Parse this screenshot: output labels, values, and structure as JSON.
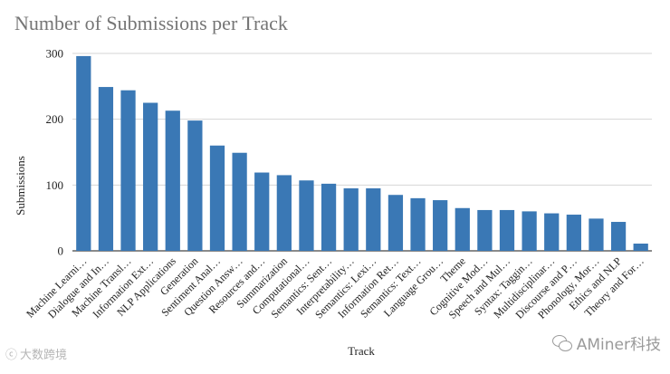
{
  "chart_data": {
    "type": "bar",
    "title": "Number of Submissions per Track",
    "xlabel": "Track",
    "ylabel": "Submissions",
    "ylim": [
      0,
      300
    ],
    "yticks": [
      "0",
      "100",
      "200",
      "300"
    ],
    "grid": true,
    "legend": "none",
    "bar_color": "#3a78b5",
    "categories": [
      "Machine Learni…",
      "Dialogue and In…",
      "Machine Transl…",
      "Information Ext…",
      "NLP Applications",
      "Generation",
      "Sentiment Anal…",
      "Question Answ…",
      "Resources and…",
      "Summarization",
      "Computational…",
      "Semantics: Sent…",
      "Interpretability…",
      "Semantics: Lexi…",
      "Information Ret…",
      "Semantics: Text…",
      "Language Grou…",
      "Theme",
      "Cognitive Mod…",
      "Speech and Mul…",
      "Syntax: Taggin…",
      "Multidisciplinar…",
      "Discourse and P…",
      "Phonology, Mor…",
      "Ethics and NLP",
      "Theory and For…"
    ],
    "values": [
      296,
      249,
      244,
      225,
      213,
      198,
      160,
      149,
      119,
      115,
      107,
      102,
      95,
      95,
      85,
      80,
      77,
      65,
      62,
      62,
      60,
      57,
      55,
      49,
      44,
      11
    ]
  },
  "watermarks": {
    "left_text": "大数跨境",
    "right_text": "AMiner科技",
    "right_icon": "wechat-icon"
  }
}
